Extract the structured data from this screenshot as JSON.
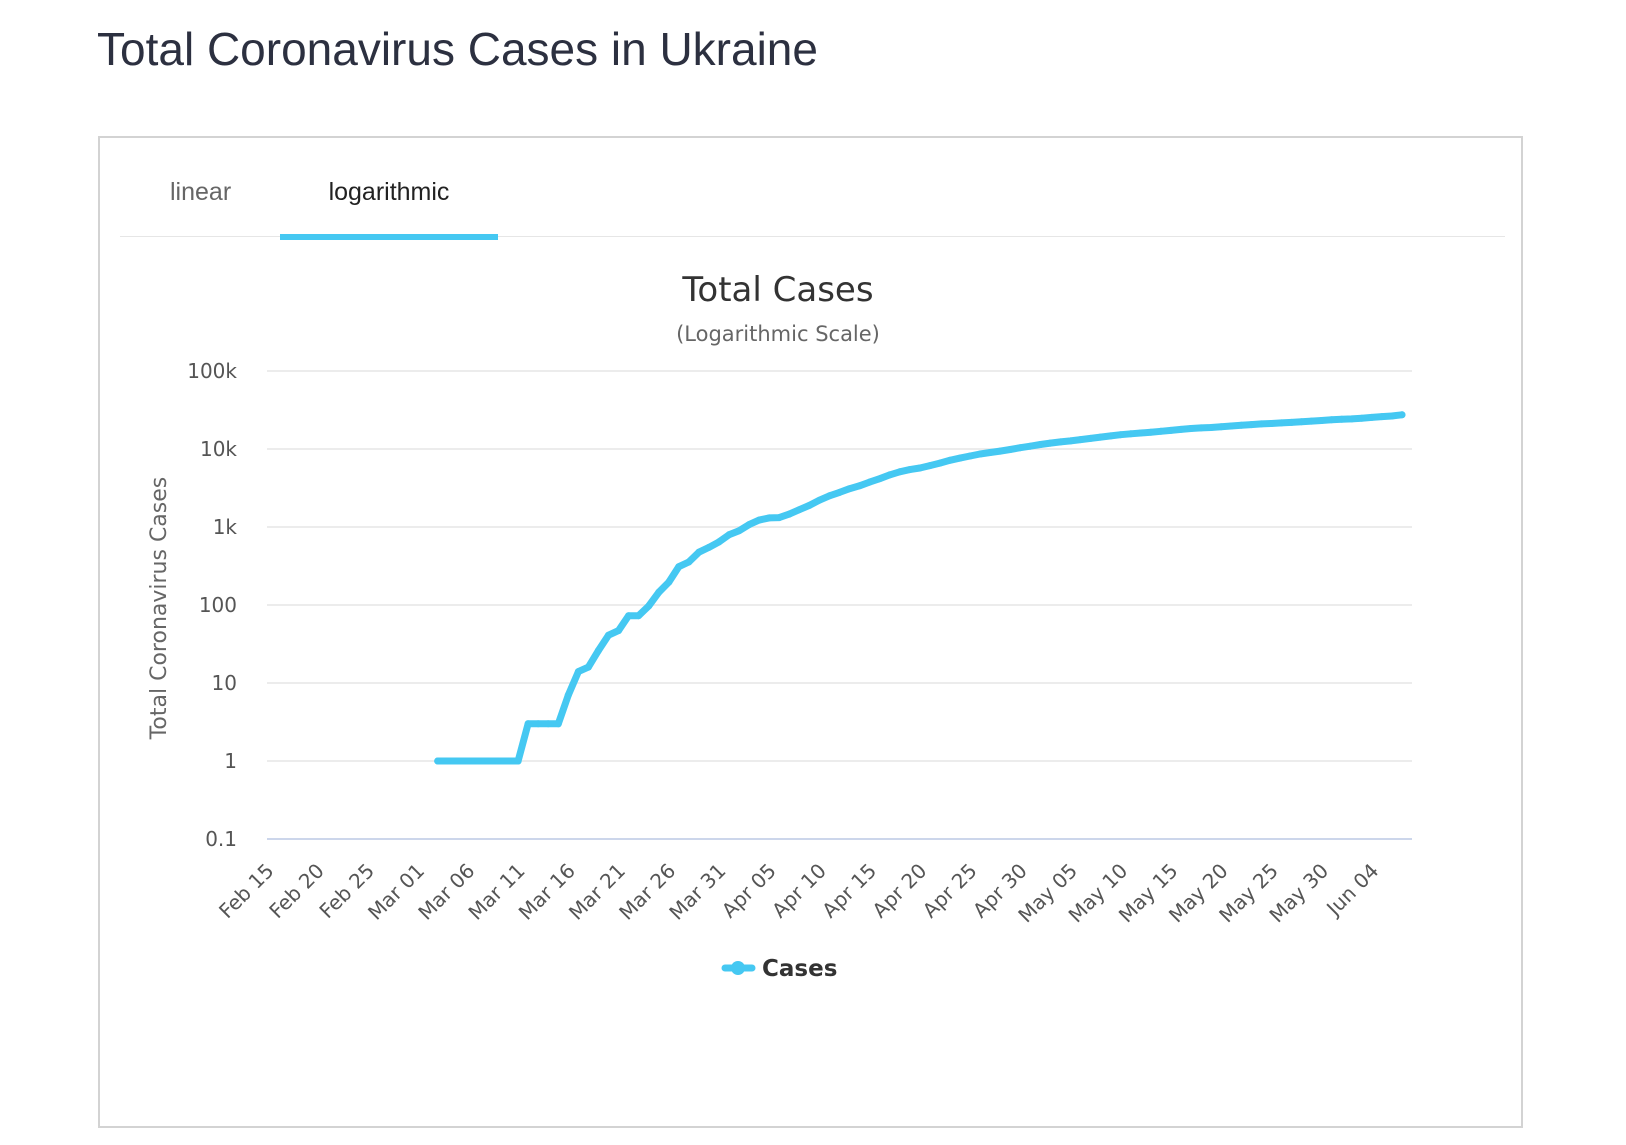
{
  "page": {
    "title": "Total Coronavirus Cases in Ukraine"
  },
  "tabs": [
    {
      "label": "linear",
      "active": false
    },
    {
      "label": "logarithmic",
      "active": true
    }
  ],
  "colors": {
    "series": "#45c8f2",
    "gridline": "#e6e6e6",
    "axis_line": "#ccd6eb"
  },
  "chart_data": {
    "type": "line",
    "title": "Total Cases",
    "subtitle": "(Logarithmic Scale)",
    "ylabel": "Total Coronavirus Cases",
    "xlabel": "",
    "yscale": "log",
    "ylim": [
      0.1,
      100000
    ],
    "y_ticks": [
      {
        "value": 0.1,
        "label": "0.1"
      },
      {
        "value": 1,
        "label": "1"
      },
      {
        "value": 10,
        "label": "10"
      },
      {
        "value": 100,
        "label": "100"
      },
      {
        "value": 1000,
        "label": "1k"
      },
      {
        "value": 10000,
        "label": "10k"
      },
      {
        "value": 100000,
        "label": "100k"
      }
    ],
    "xlim": [
      "2020-02-15",
      "2020-06-08"
    ],
    "x_ticks": [
      {
        "date": "2020-02-15",
        "label": "Feb 15"
      },
      {
        "date": "2020-02-20",
        "label": "Feb 20"
      },
      {
        "date": "2020-02-25",
        "label": "Feb 25"
      },
      {
        "date": "2020-03-01",
        "label": "Mar 01"
      },
      {
        "date": "2020-03-06",
        "label": "Mar 06"
      },
      {
        "date": "2020-03-11",
        "label": "Mar 11"
      },
      {
        "date": "2020-03-16",
        "label": "Mar 16"
      },
      {
        "date": "2020-03-21",
        "label": "Mar 21"
      },
      {
        "date": "2020-03-26",
        "label": "Mar 26"
      },
      {
        "date": "2020-03-31",
        "label": "Mar 31"
      },
      {
        "date": "2020-04-05",
        "label": "Apr 05"
      },
      {
        "date": "2020-04-10",
        "label": "Apr 10"
      },
      {
        "date": "2020-04-15",
        "label": "Apr 15"
      },
      {
        "date": "2020-04-20",
        "label": "Apr 20"
      },
      {
        "date": "2020-04-25",
        "label": "Apr 25"
      },
      {
        "date": "2020-04-30",
        "label": "Apr 30"
      },
      {
        "date": "2020-05-05",
        "label": "May 05"
      },
      {
        "date": "2020-05-10",
        "label": "May 10"
      },
      {
        "date": "2020-05-15",
        "label": "May 15"
      },
      {
        "date": "2020-05-20",
        "label": "May 20"
      },
      {
        "date": "2020-05-25",
        "label": "May 25"
      },
      {
        "date": "2020-05-30",
        "label": "May 30"
      },
      {
        "date": "2020-06-04",
        "label": "Jun 04"
      }
    ],
    "legend": {
      "position": "bottom-center"
    },
    "grid": true,
    "series": [
      {
        "name": "Cases",
        "color": "#45c8f2",
        "points": [
          {
            "x": "2020-03-03",
            "y": 1
          },
          {
            "x": "2020-03-04",
            "y": 1
          },
          {
            "x": "2020-03-05",
            "y": 1
          },
          {
            "x": "2020-03-06",
            "y": 1
          },
          {
            "x": "2020-03-07",
            "y": 1
          },
          {
            "x": "2020-03-08",
            "y": 1
          },
          {
            "x": "2020-03-09",
            "y": 1
          },
          {
            "x": "2020-03-10",
            "y": 1
          },
          {
            "x": "2020-03-11",
            "y": 1
          },
          {
            "x": "2020-03-12",
            "y": 3
          },
          {
            "x": "2020-03-13",
            "y": 3
          },
          {
            "x": "2020-03-14",
            "y": 3
          },
          {
            "x": "2020-03-15",
            "y": 3
          },
          {
            "x": "2020-03-16",
            "y": 7
          },
          {
            "x": "2020-03-17",
            "y": 14
          },
          {
            "x": "2020-03-18",
            "y": 16
          },
          {
            "x": "2020-03-19",
            "y": 26
          },
          {
            "x": "2020-03-20",
            "y": 41
          },
          {
            "x": "2020-03-21",
            "y": 47
          },
          {
            "x": "2020-03-22",
            "y": 73
          },
          {
            "x": "2020-03-23",
            "y": 73
          },
          {
            "x": "2020-03-24",
            "y": 97
          },
          {
            "x": "2020-03-25",
            "y": 145
          },
          {
            "x": "2020-03-26",
            "y": 196
          },
          {
            "x": "2020-03-27",
            "y": 310
          },
          {
            "x": "2020-03-28",
            "y": 356
          },
          {
            "x": "2020-03-29",
            "y": 475
          },
          {
            "x": "2020-03-30",
            "y": 548
          },
          {
            "x": "2020-03-31",
            "y": 645
          },
          {
            "x": "2020-04-01",
            "y": 794
          },
          {
            "x": "2020-04-02",
            "y": 897
          },
          {
            "x": "2020-04-03",
            "y": 1072
          },
          {
            "x": "2020-04-04",
            "y": 1225
          },
          {
            "x": "2020-04-05",
            "y": 1308
          },
          {
            "x": "2020-04-06",
            "y": 1319
          },
          {
            "x": "2020-04-07",
            "y": 1462
          },
          {
            "x": "2020-04-08",
            "y": 1668
          },
          {
            "x": "2020-04-09",
            "y": 1892
          },
          {
            "x": "2020-04-10",
            "y": 2203
          },
          {
            "x": "2020-04-11",
            "y": 2511
          },
          {
            "x": "2020-04-12",
            "y": 2777
          },
          {
            "x": "2020-04-13",
            "y": 3102
          },
          {
            "x": "2020-04-14",
            "y": 3372
          },
          {
            "x": "2020-04-15",
            "y": 3764
          },
          {
            "x": "2020-04-16",
            "y": 4161
          },
          {
            "x": "2020-04-17",
            "y": 4662
          },
          {
            "x": "2020-04-18",
            "y": 5106
          },
          {
            "x": "2020-04-19",
            "y": 5449
          },
          {
            "x": "2020-04-20",
            "y": 5710
          },
          {
            "x": "2020-04-21",
            "y": 6125
          },
          {
            "x": "2020-04-22",
            "y": 6592
          },
          {
            "x": "2020-04-23",
            "y": 7170
          },
          {
            "x": "2020-04-24",
            "y": 7647
          },
          {
            "x": "2020-04-25",
            "y": 8125
          },
          {
            "x": "2020-04-26",
            "y": 8617
          },
          {
            "x": "2020-04-27",
            "y": 9009
          },
          {
            "x": "2020-04-28",
            "y": 9410
          },
          {
            "x": "2020-04-29",
            "y": 9866
          },
          {
            "x": "2020-04-30",
            "y": 10406
          },
          {
            "x": "2020-05-01",
            "y": 10861
          },
          {
            "x": "2020-05-02",
            "y": 11411
          },
          {
            "x": "2020-05-03",
            "y": 11913
          },
          {
            "x": "2020-05-04",
            "y": 12331
          },
          {
            "x": "2020-05-05",
            "y": 12697
          },
          {
            "x": "2020-05-06",
            "y": 13184
          },
          {
            "x": "2020-05-07",
            "y": 13691
          },
          {
            "x": "2020-05-08",
            "y": 14195
          },
          {
            "x": "2020-05-09",
            "y": 14710
          },
          {
            "x": "2020-05-10",
            "y": 15232
          },
          {
            "x": "2020-05-11",
            "y": 15648
          },
          {
            "x": "2020-05-12",
            "y": 16023
          },
          {
            "x": "2020-05-13",
            "y": 16425
          },
          {
            "x": "2020-05-14",
            "y": 16847
          },
          {
            "x": "2020-05-15",
            "y": 17330
          },
          {
            "x": "2020-05-16",
            "y": 17858
          },
          {
            "x": "2020-05-17",
            "y": 18291
          },
          {
            "x": "2020-05-18",
            "y": 18616
          },
          {
            "x": "2020-05-19",
            "y": 18876
          },
          {
            "x": "2020-05-20",
            "y": 19230
          },
          {
            "x": "2020-05-21",
            "y": 19706
          },
          {
            "x": "2020-05-22",
            "y": 20148
          },
          {
            "x": "2020-05-23",
            "y": 20580
          },
          {
            "x": "2020-05-24",
            "y": 20986
          },
          {
            "x": "2020-05-25",
            "y": 21245
          },
          {
            "x": "2020-05-26",
            "y": 21584
          },
          {
            "x": "2020-05-27",
            "y": 21905
          },
          {
            "x": "2020-05-28",
            "y": 22382
          },
          {
            "x": "2020-05-29",
            "y": 22811
          },
          {
            "x": "2020-05-30",
            "y": 23204
          },
          {
            "x": "2020-05-31",
            "y": 23672
          },
          {
            "x": "2020-06-01",
            "y": 24012
          },
          {
            "x": "2020-06-02",
            "y": 24340
          },
          {
            "x": "2020-06-03",
            "y": 24823
          },
          {
            "x": "2020-06-04",
            "y": 25411
          },
          {
            "x": "2020-06-05",
            "y": 26014
          },
          {
            "x": "2020-06-06",
            "y": 26514
          },
          {
            "x": "2020-06-07",
            "y": 27462
          }
        ]
      }
    ]
  }
}
